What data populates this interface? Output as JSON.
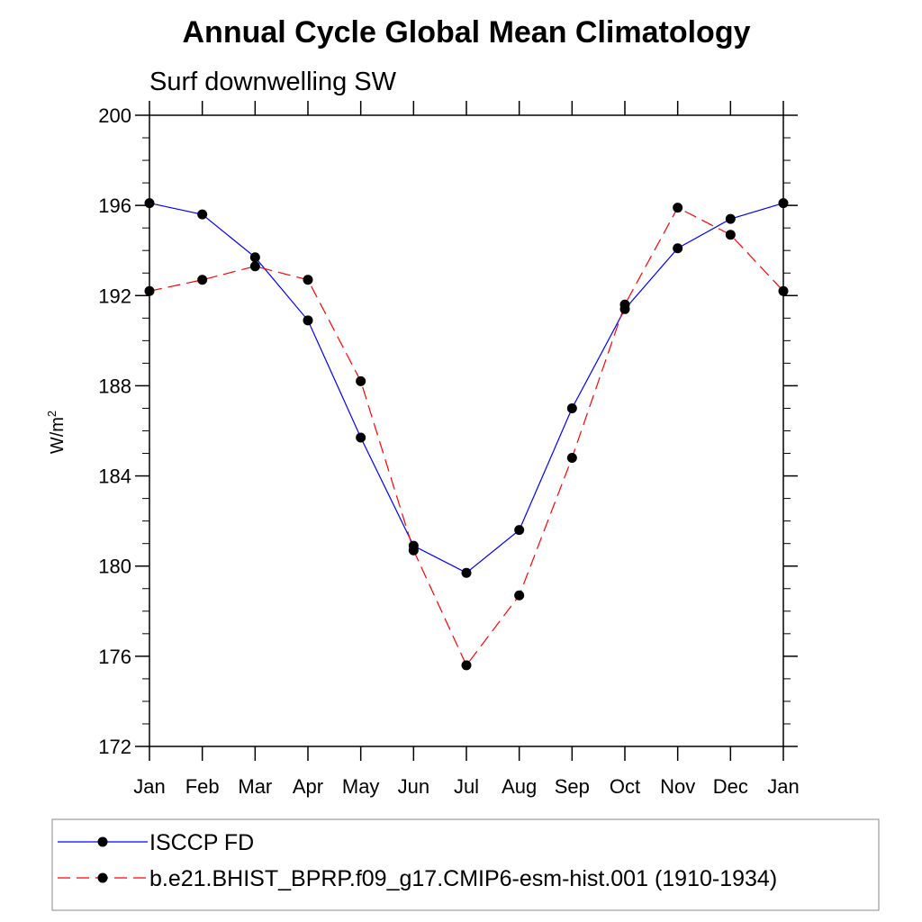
{
  "chart_data": {
    "type": "line",
    "title": "Annual Cycle Global Mean Climatology",
    "subtitle": "Surf downwelling SW",
    "ylabel_base": "W/m",
    "ylabel_sup": "2",
    "categories": [
      "Jan",
      "Feb",
      "Mar",
      "Apr",
      "May",
      "Jun",
      "Jul",
      "Aug",
      "Sep",
      "Oct",
      "Nov",
      "Dec",
      "Jan"
    ],
    "ylim": [
      172,
      200
    ],
    "yticks": [
      172,
      176,
      180,
      184,
      188,
      192,
      196,
      200
    ],
    "legend_position": "bottom",
    "series": [
      {
        "name": "ISCCP FD",
        "color": "#0000ff",
        "style": "solid",
        "values": [
          196.1,
          195.6,
          193.7,
          190.9,
          185.7,
          180.9,
          179.7,
          181.6,
          187.0,
          191.4,
          194.1,
          195.4,
          196.1
        ]
      },
      {
        "name": "b.e21.BHIST_BPRP.f09_g17.CMIP6-esm-hist.001 (1910-1934)",
        "color": "#ff0000",
        "style": "dashed",
        "values": [
          192.2,
          192.7,
          193.3,
          192.7,
          188.2,
          180.7,
          175.6,
          178.7,
          184.8,
          191.6,
          195.9,
          194.7,
          192.2
        ]
      }
    ]
  }
}
